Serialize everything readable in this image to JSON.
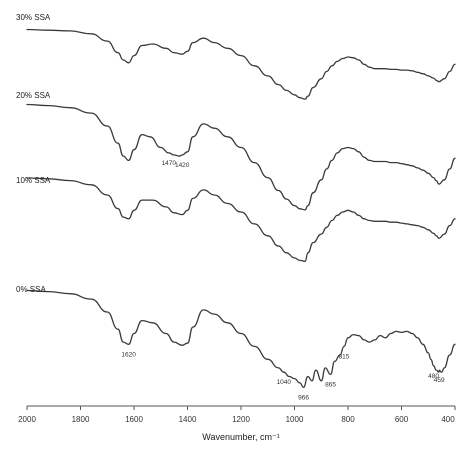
{
  "chart_data": {
    "type": "line",
    "title": "",
    "xlabel": "Wavenumber, cm⁻¹",
    "ylabel": "",
    "xlim": [
      2000,
      400
    ],
    "x_reversed": true,
    "x_ticks": [
      "2000",
      "1800",
      "1600",
      "1400",
      "1200",
      "1000",
      "800",
      "600",
      "400"
    ],
    "grid": false,
    "series": [
      {
        "name": "30% SSA",
        "x": [
          2000,
          1920,
          1840,
          1760,
          1700,
          1660,
          1640,
          1620,
          1600,
          1570,
          1530,
          1480,
          1450,
          1420,
          1400,
          1380,
          1340,
          1300,
          1250,
          1200,
          1150,
          1100,
          1060,
          1030,
          1000,
          980,
          960,
          950,
          930,
          900,
          880,
          860,
          840,
          820,
          800,
          780,
          760,
          740,
          720,
          700,
          680,
          660,
          640,
          620,
          600,
          580,
          560,
          540,
          520,
          500,
          480,
          470,
          460,
          440,
          420,
          400
        ],
        "y": [
          5.0,
          4.95,
          4.9,
          4.7,
          4.2,
          3.4,
          2.9,
          2.7,
          3.2,
          3.9,
          4.0,
          3.7,
          3.4,
          3.3,
          3.5,
          4.1,
          4.4,
          4.1,
          3.7,
          3.2,
          2.5,
          1.8,
          1.2,
          0.8,
          0.5,
          0.3,
          0.2,
          0.4,
          1.0,
          1.6,
          2.1,
          2.5,
          2.8,
          3.0,
          3.1,
          3.05,
          2.9,
          2.6,
          2.4,
          2.3,
          2.3,
          2.3,
          2.25,
          2.25,
          2.2,
          2.2,
          2.15,
          2.05,
          1.95,
          1.8,
          1.65,
          1.5,
          1.4,
          1.6,
          2.1,
          2.6
        ]
      },
      {
        "name": "20% SSA",
        "x": [
          2000,
          1920,
          1840,
          1760,
          1700,
          1660,
          1640,
          1620,
          1600,
          1570,
          1540,
          1500,
          1470,
          1450,
          1430,
          1420,
          1400,
          1380,
          1340,
          1300,
          1250,
          1200,
          1150,
          1100,
          1060,
          1030,
          1000,
          980,
          960,
          950,
          930,
          900,
          880,
          860,
          840,
          820,
          800,
          780,
          760,
          740,
          720,
          700,
          680,
          660,
          640,
          620,
          600,
          580,
          560,
          540,
          520,
          500,
          480,
          470,
          460,
          440,
          420,
          400
        ],
        "y": [
          5.0,
          4.95,
          4.85,
          4.6,
          4.0,
          3.2,
          2.6,
          2.4,
          2.9,
          3.6,
          3.5,
          3.0,
          2.75,
          2.65,
          2.6,
          2.65,
          2.8,
          3.5,
          4.1,
          3.9,
          3.5,
          3.0,
          2.3,
          1.6,
          1.0,
          0.6,
          0.3,
          0.15,
          0.1,
          0.3,
          0.9,
          1.5,
          2.0,
          2.4,
          2.75,
          2.95,
          3.0,
          2.95,
          2.8,
          2.55,
          2.4,
          2.35,
          2.35,
          2.35,
          2.3,
          2.3,
          2.25,
          2.2,
          2.15,
          2.05,
          1.95,
          1.8,
          1.6,
          1.45,
          1.3,
          1.5,
          2.0,
          2.5
        ]
      },
      {
        "name": "10% SSA",
        "x": [
          2000,
          1920,
          1840,
          1760,
          1700,
          1660,
          1640,
          1620,
          1600,
          1570,
          1530,
          1480,
          1450,
          1420,
          1400,
          1380,
          1340,
          1300,
          1250,
          1200,
          1150,
          1100,
          1060,
          1030,
          1000,
          980,
          960,
          950,
          930,
          900,
          880,
          860,
          840,
          820,
          800,
          780,
          760,
          740,
          720,
          700,
          680,
          660,
          640,
          620,
          600,
          580,
          560,
          540,
          520,
          500,
          480,
          470,
          460,
          440,
          420,
          400
        ],
        "y": [
          5.0,
          4.95,
          4.85,
          4.6,
          4.0,
          3.2,
          2.7,
          2.6,
          3.1,
          3.7,
          3.7,
          3.3,
          2.95,
          2.85,
          3.1,
          3.8,
          4.3,
          4.0,
          3.5,
          3.0,
          2.3,
          1.6,
          1.0,
          0.6,
          0.3,
          0.15,
          0.1,
          0.6,
          1.2,
          1.7,
          2.1,
          2.5,
          2.8,
          3.0,
          3.1,
          3.0,
          2.8,
          2.6,
          2.5,
          2.45,
          2.45,
          2.45,
          2.4,
          2.4,
          2.35,
          2.3,
          2.25,
          2.2,
          2.1,
          1.95,
          1.75,
          1.6,
          1.45,
          1.7,
          2.2,
          2.6
        ]
      },
      {
        "name": "0% SSA",
        "x": [
          2000,
          1920,
          1840,
          1760,
          1700,
          1660,
          1640,
          1620,
          1600,
          1570,
          1530,
          1480,
          1450,
          1420,
          1400,
          1380,
          1340,
          1300,
          1250,
          1200,
          1150,
          1100,
          1060,
          1040,
          1020,
          1000,
          980,
          966,
          950,
          935,
          920,
          900,
          885,
          865,
          850,
          830,
          815,
          800,
          780,
          760,
          740,
          720,
          700,
          680,
          660,
          640,
          620,
          600,
          580,
          560,
          540,
          520,
          500,
          490,
          480,
          470,
          460,
          459,
          450,
          440,
          420,
          400
        ],
        "y": [
          5.0,
          4.95,
          4.85,
          4.6,
          4.0,
          3.2,
          2.6,
          2.5,
          3.0,
          3.6,
          3.5,
          3.0,
          2.6,
          2.45,
          2.55,
          3.3,
          4.1,
          3.9,
          3.5,
          3.0,
          2.4,
          1.8,
          1.4,
          1.2,
          1.0,
          0.9,
          0.7,
          0.5,
          1.0,
          0.8,
          1.3,
          0.8,
          1.4,
          1.1,
          1.7,
          2.0,
          2.4,
          2.8,
          2.95,
          2.9,
          2.7,
          2.6,
          2.7,
          2.9,
          2.8,
          3.0,
          3.1,
          3.05,
          3.1,
          3.0,
          2.8,
          2.5,
          2.1,
          1.8,
          1.5,
          1.3,
          1.2,
          1.3,
          1.2,
          1.4,
          2.0,
          2.5
        ]
      }
    ],
    "series_labels_display": [
      "30% SSA",
      "20% SSA",
      "10% SSA",
      "0% SSA"
    ],
    "annotations": [
      {
        "series": "20% SSA",
        "x": 1470,
        "text": "1470"
      },
      {
        "series": "20% SSA",
        "x": 1420,
        "text": "1420"
      },
      {
        "series": "0% SSA",
        "x": 1620,
        "text": "1620"
      },
      {
        "series": "0% SSA",
        "x": 1040,
        "text": "1040"
      },
      {
        "series": "0% SSA",
        "x": 966,
        "text": "966"
      },
      {
        "series": "0% SSA",
        "x": 865,
        "text": "865"
      },
      {
        "series": "0% SSA",
        "x": 815,
        "text": "815"
      },
      {
        "series": "0% SSA",
        "x": 480,
        "text": "480"
      },
      {
        "series": "0% SSA",
        "x": 459,
        "text": "459"
      }
    ],
    "colors": {
      "line": "#3a3a3a",
      "axis": "#555555",
      "text": "#222222"
    }
  }
}
